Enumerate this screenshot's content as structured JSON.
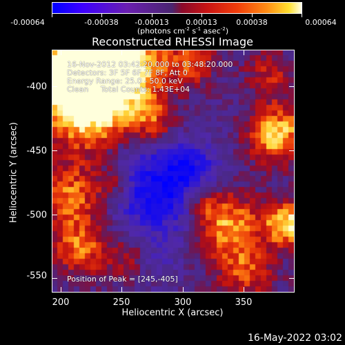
{
  "colorbar": {
    "ticks": [
      "-0.00064",
      "-0.00038",
      "-0.00013",
      "0.00013",
      "0.00038",
      "0.00064"
    ],
    "unit_prefix": "(photons cm",
    "unit_exp1": "-2",
    "unit_mid1": " s",
    "unit_exp2": "-1",
    "unit_mid2": " asec",
    "unit_exp3": "-2",
    "unit_suffix": ")"
  },
  "plot": {
    "title": "Reconstructed RHESSI Image",
    "info_lines": [
      "16-Nov-2012 03:42:20.000 to 03:48:20.000",
      "Detectors: 3F 5F 6F 7F 8F, Att 0",
      "Energy Range: 25.0 - 50.0 keV",
      "Clean     Total Counts: 1.43E+04"
    ],
    "peak_label": "Position of Peak = [245,-405]"
  },
  "axes": {
    "xlabel": "Heliocentric X (arcsec)",
    "ylabel": "Heliocentric Y (arcsec)",
    "xticks": [
      "200",
      "250",
      "300",
      "350"
    ],
    "yticks": [
      "-400",
      "-450",
      "-500",
      "-550"
    ]
  },
  "footer": {
    "timestamp": "16-May-2022 03:02"
  }
}
